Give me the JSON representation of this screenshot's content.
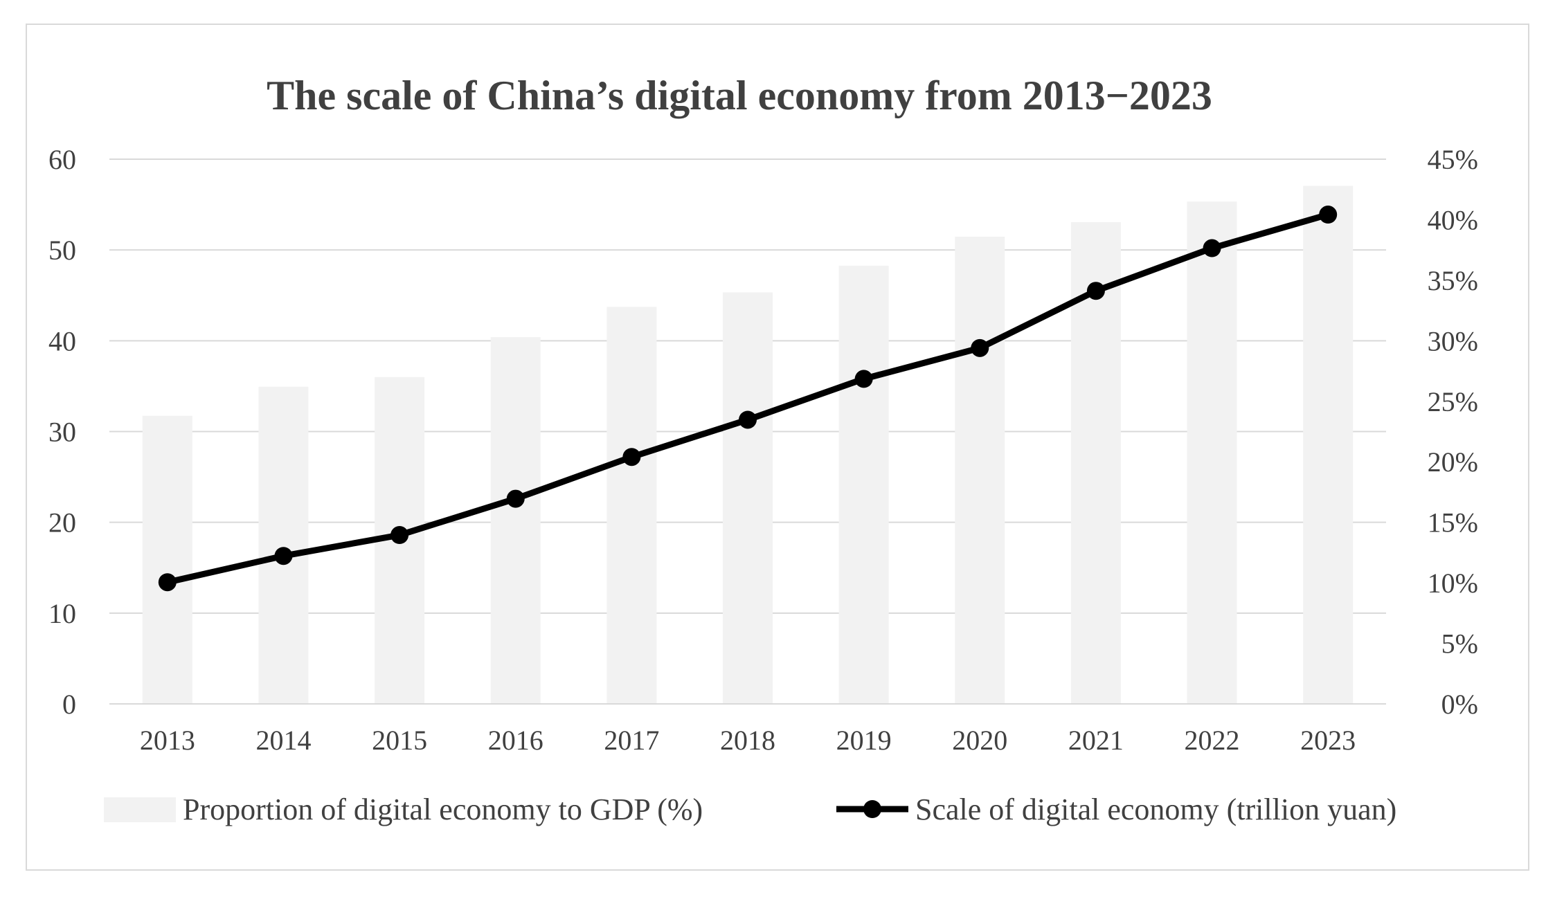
{
  "chart_data": {
    "type": "bar+line",
    "title": "The scale of China’s digital economy from 2013−2023",
    "categories": [
      "2013",
      "2014",
      "2015",
      "2016",
      "2017",
      "2018",
      "2019",
      "2020",
      "2021",
      "2022",
      "2023"
    ],
    "series": [
      {
        "name": "Proportion of digital economy to GDP (%)",
        "type": "bar",
        "axis": "right",
        "color": "#f2f2f2",
        "values": [
          23.8,
          26.2,
          27.0,
          30.3,
          32.8,
          34.0,
          36.2,
          38.6,
          39.8,
          41.5,
          42.8
        ]
      },
      {
        "name": "Scale of digital economy (trillion yuan)",
        "type": "line",
        "axis": "left",
        "color": "#000000",
        "values": [
          13.4,
          16.3,
          18.6,
          22.6,
          27.2,
          31.3,
          35.8,
          39.2,
          45.5,
          50.2,
          53.9
        ]
      }
    ],
    "y_left": {
      "ylim": [
        0,
        60
      ],
      "ticks": [
        0,
        10,
        20,
        30,
        40,
        50,
        60
      ],
      "tick_labels": [
        "0",
        "10",
        "20",
        "30",
        "40",
        "50",
        "60"
      ]
    },
    "y_right": {
      "ylim": [
        0,
        45
      ],
      "ticks": [
        0,
        5,
        10,
        15,
        20,
        25,
        30,
        35,
        40,
        45
      ],
      "tick_labels": [
        "0%",
        "5%",
        "10%",
        "15%",
        "20%",
        "25%",
        "30%",
        "35%",
        "40%",
        "45%"
      ]
    },
    "grid": true,
    "legend_position": "bottom"
  }
}
